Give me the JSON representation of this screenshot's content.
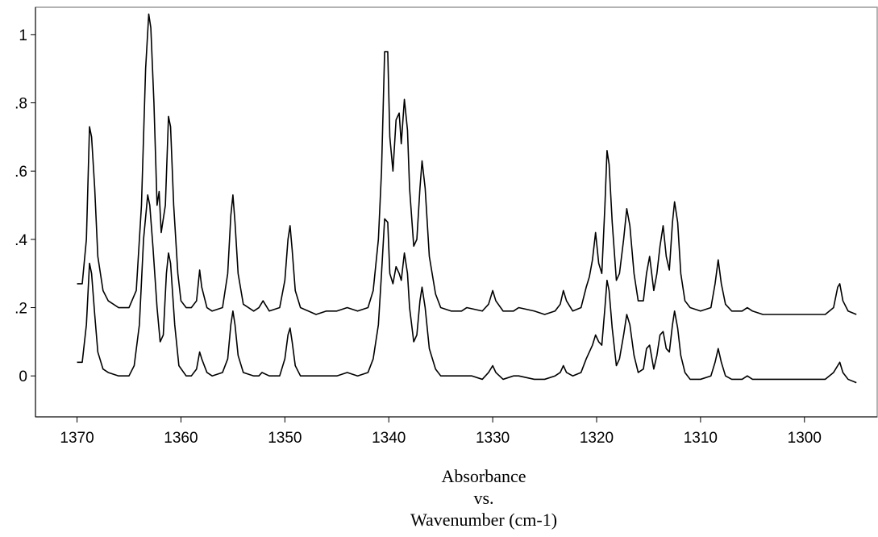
{
  "chart_data": {
    "type": "line",
    "title": "",
    "xlabel_lines": [
      "Absorbance",
      "vs.",
      "Wavenumber (cm-1)"
    ],
    "ylabel": "",
    "x_reversed": true,
    "xlim": [
      1374,
      1293
    ],
    "ylim": [
      -0.12,
      1.08
    ],
    "x_ticks": [
      1370,
      1360,
      1350,
      1340,
      1330,
      1320,
      1310,
      1300
    ],
    "x_tick_labels": [
      "1370",
      "1360",
      "1350",
      "1340",
      "1330",
      "1320",
      "1310",
      "1300"
    ],
    "y_ticks": [
      0,
      0.2,
      0.4,
      0.6,
      0.8,
      1.0
    ],
    "y_tick_labels": [
      "0",
      ".2",
      ".4",
      ".6",
      ".8",
      "1"
    ],
    "grid": false,
    "legend": "none",
    "series": [
      {
        "color": "#000000",
        "points": [
          [
            1370,
            0.27
          ],
          [
            1369.5,
            0.27
          ],
          [
            1369.1,
            0.4
          ],
          [
            1368.8,
            0.73
          ],
          [
            1368.6,
            0.7
          ],
          [
            1368.3,
            0.55
          ],
          [
            1368,
            0.35
          ],
          [
            1367.5,
            0.25
          ],
          [
            1367,
            0.22
          ],
          [
            1366,
            0.2
          ],
          [
            1365,
            0.2
          ],
          [
            1364.3,
            0.25
          ],
          [
            1363.8,
            0.5
          ],
          [
            1363.4,
            0.9
          ],
          [
            1363.1,
            1.06
          ],
          [
            1362.9,
            1.02
          ],
          [
            1362.6,
            0.8
          ],
          [
            1362.3,
            0.5
          ],
          [
            1362.1,
            0.54
          ],
          [
            1361.9,
            0.42
          ],
          [
            1361.5,
            0.5
          ],
          [
            1361.2,
            0.76
          ],
          [
            1361,
            0.73
          ],
          [
            1360.7,
            0.5
          ],
          [
            1360.3,
            0.3
          ],
          [
            1360,
            0.22
          ],
          [
            1359.5,
            0.2
          ],
          [
            1359,
            0.2
          ],
          [
            1358.5,
            0.22
          ],
          [
            1358.2,
            0.31
          ],
          [
            1358,
            0.26
          ],
          [
            1357.5,
            0.2
          ],
          [
            1357,
            0.19
          ],
          [
            1356,
            0.2
          ],
          [
            1355.5,
            0.3
          ],
          [
            1355.2,
            0.47
          ],
          [
            1355,
            0.53
          ],
          [
            1354.8,
            0.45
          ],
          [
            1354.5,
            0.3
          ],
          [
            1354,
            0.21
          ],
          [
            1353,
            0.19
          ],
          [
            1352.5,
            0.2
          ],
          [
            1352.1,
            0.22
          ],
          [
            1351.5,
            0.19
          ],
          [
            1350.5,
            0.2
          ],
          [
            1350,
            0.28
          ],
          [
            1349.7,
            0.4
          ],
          [
            1349.5,
            0.44
          ],
          [
            1349.3,
            0.37
          ],
          [
            1349,
            0.25
          ],
          [
            1348.5,
            0.2
          ],
          [
            1347,
            0.18
          ],
          [
            1346,
            0.19
          ],
          [
            1345,
            0.19
          ],
          [
            1344,
            0.2
          ],
          [
            1343,
            0.19
          ],
          [
            1342,
            0.2
          ],
          [
            1341.5,
            0.25
          ],
          [
            1341,
            0.4
          ],
          [
            1340.7,
            0.6
          ],
          [
            1340.4,
            0.95
          ],
          [
            1340.1,
            0.95
          ],
          [
            1339.9,
            0.7
          ],
          [
            1339.6,
            0.6
          ],
          [
            1339.3,
            0.75
          ],
          [
            1339,
            0.77
          ],
          [
            1338.8,
            0.68
          ],
          [
            1338.5,
            0.81
          ],
          [
            1338.2,
            0.72
          ],
          [
            1338,
            0.55
          ],
          [
            1337.6,
            0.38
          ],
          [
            1337.3,
            0.4
          ],
          [
            1337,
            0.55
          ],
          [
            1336.8,
            0.63
          ],
          [
            1336.5,
            0.55
          ],
          [
            1336.1,
            0.35
          ],
          [
            1335.5,
            0.24
          ],
          [
            1335,
            0.2
          ],
          [
            1334,
            0.19
          ],
          [
            1333,
            0.19
          ],
          [
            1332.5,
            0.2
          ],
          [
            1331,
            0.19
          ],
          [
            1330.4,
            0.21
          ],
          [
            1330,
            0.25
          ],
          [
            1329.7,
            0.22
          ],
          [
            1329,
            0.19
          ],
          [
            1328,
            0.19
          ],
          [
            1327.5,
            0.2
          ],
          [
            1326,
            0.19
          ],
          [
            1325,
            0.18
          ],
          [
            1324,
            0.19
          ],
          [
            1323.5,
            0.21
          ],
          [
            1323.2,
            0.25
          ],
          [
            1322.9,
            0.22
          ],
          [
            1322.3,
            0.19
          ],
          [
            1321.5,
            0.2
          ],
          [
            1321,
            0.26
          ],
          [
            1320.7,
            0.29
          ],
          [
            1320.4,
            0.34
          ],
          [
            1320.1,
            0.42
          ],
          [
            1319.8,
            0.33
          ],
          [
            1319.5,
            0.3
          ],
          [
            1319.2,
            0.5
          ],
          [
            1319,
            0.66
          ],
          [
            1318.8,
            0.62
          ],
          [
            1318.5,
            0.45
          ],
          [
            1318.1,
            0.28
          ],
          [
            1317.8,
            0.3
          ],
          [
            1317.4,
            0.4
          ],
          [
            1317.1,
            0.49
          ],
          [
            1316.8,
            0.44
          ],
          [
            1316.4,
            0.3
          ],
          [
            1316,
            0.22
          ],
          [
            1315.5,
            0.22
          ],
          [
            1315.2,
            0.3
          ],
          [
            1314.9,
            0.35
          ],
          [
            1314.5,
            0.25
          ],
          [
            1314.2,
            0.3
          ],
          [
            1313.9,
            0.38
          ],
          [
            1313.6,
            0.44
          ],
          [
            1313.3,
            0.35
          ],
          [
            1313,
            0.31
          ],
          [
            1312.7,
            0.45
          ],
          [
            1312.5,
            0.51
          ],
          [
            1312.2,
            0.45
          ],
          [
            1311.9,
            0.3
          ],
          [
            1311.5,
            0.22
          ],
          [
            1311,
            0.2
          ],
          [
            1310,
            0.19
          ],
          [
            1309,
            0.2
          ],
          [
            1308.6,
            0.27
          ],
          [
            1308.3,
            0.34
          ],
          [
            1308,
            0.27
          ],
          [
            1307.6,
            0.21
          ],
          [
            1307,
            0.19
          ],
          [
            1306,
            0.19
          ],
          [
            1305.5,
            0.2
          ],
          [
            1305,
            0.19
          ],
          [
            1304,
            0.18
          ],
          [
            1303,
            0.18
          ],
          [
            1302,
            0.18
          ],
          [
            1301,
            0.18
          ],
          [
            1300,
            0.18
          ],
          [
            1298,
            0.18
          ],
          [
            1297.2,
            0.2
          ],
          [
            1296.8,
            0.26
          ],
          [
            1296.6,
            0.27
          ],
          [
            1296.3,
            0.22
          ],
          [
            1295.8,
            0.19
          ],
          [
            1295,
            0.18
          ]
        ]
      },
      {
        "color": "#000000",
        "points": [
          [
            1370,
            0.04
          ],
          [
            1369.5,
            0.04
          ],
          [
            1369.1,
            0.15
          ],
          [
            1368.8,
            0.33
          ],
          [
            1368.6,
            0.3
          ],
          [
            1368.3,
            0.18
          ],
          [
            1368,
            0.07
          ],
          [
            1367.5,
            0.02
          ],
          [
            1367,
            0.01
          ],
          [
            1366,
            0.0
          ],
          [
            1365,
            0.0
          ],
          [
            1364.5,
            0.03
          ],
          [
            1364,
            0.15
          ],
          [
            1363.6,
            0.4
          ],
          [
            1363.2,
            0.53
          ],
          [
            1363,
            0.5
          ],
          [
            1362.7,
            0.38
          ],
          [
            1362.3,
            0.2
          ],
          [
            1362,
            0.1
          ],
          [
            1361.7,
            0.12
          ],
          [
            1361.4,
            0.3
          ],
          [
            1361.2,
            0.36
          ],
          [
            1361,
            0.33
          ],
          [
            1360.6,
            0.15
          ],
          [
            1360.2,
            0.03
          ],
          [
            1359.5,
            0.0
          ],
          [
            1359,
            0.0
          ],
          [
            1358.5,
            0.02
          ],
          [
            1358.2,
            0.07
          ],
          [
            1358,
            0.05
          ],
          [
            1357.5,
            0.01
          ],
          [
            1357,
            0.0
          ],
          [
            1356,
            0.01
          ],
          [
            1355.5,
            0.05
          ],
          [
            1355.2,
            0.15
          ],
          [
            1355,
            0.19
          ],
          [
            1354.8,
            0.15
          ],
          [
            1354.5,
            0.06
          ],
          [
            1354,
            0.01
          ],
          [
            1353,
            0.0
          ],
          [
            1352.5,
            0.0
          ],
          [
            1352.2,
            0.01
          ],
          [
            1351.5,
            0.0
          ],
          [
            1350.5,
            0.0
          ],
          [
            1350,
            0.05
          ],
          [
            1349.7,
            0.12
          ],
          [
            1349.5,
            0.14
          ],
          [
            1349.3,
            0.1
          ],
          [
            1349,
            0.03
          ],
          [
            1348.5,
            0.0
          ],
          [
            1347,
            0.0
          ],
          [
            1345,
            0.0
          ],
          [
            1344,
            0.01
          ],
          [
            1343,
            0.0
          ],
          [
            1342,
            0.01
          ],
          [
            1341.5,
            0.05
          ],
          [
            1341,
            0.15
          ],
          [
            1340.7,
            0.3
          ],
          [
            1340.4,
            0.46
          ],
          [
            1340.1,
            0.45
          ],
          [
            1339.9,
            0.3
          ],
          [
            1339.6,
            0.27
          ],
          [
            1339.3,
            0.32
          ],
          [
            1339,
            0.3
          ],
          [
            1338.8,
            0.28
          ],
          [
            1338.5,
            0.36
          ],
          [
            1338.2,
            0.3
          ],
          [
            1338,
            0.2
          ],
          [
            1337.6,
            0.1
          ],
          [
            1337.3,
            0.12
          ],
          [
            1337,
            0.22
          ],
          [
            1336.8,
            0.26
          ],
          [
            1336.5,
            0.2
          ],
          [
            1336.1,
            0.08
          ],
          [
            1335.5,
            0.02
          ],
          [
            1335,
            0.0
          ],
          [
            1333,
            0.0
          ],
          [
            1332,
            0.0
          ],
          [
            1331,
            -0.01
          ],
          [
            1330.4,
            0.01
          ],
          [
            1330,
            0.03
          ],
          [
            1329.7,
            0.01
          ],
          [
            1329,
            -0.01
          ],
          [
            1328,
            0.0
          ],
          [
            1327.5,
            0.0
          ],
          [
            1326,
            -0.01
          ],
          [
            1325,
            -0.01
          ],
          [
            1324,
            0.0
          ],
          [
            1323.5,
            0.01
          ],
          [
            1323.2,
            0.03
          ],
          [
            1322.9,
            0.01
          ],
          [
            1322.3,
            0.0
          ],
          [
            1321.5,
            0.01
          ],
          [
            1321,
            0.05
          ],
          [
            1320.7,
            0.07
          ],
          [
            1320.4,
            0.09
          ],
          [
            1320.1,
            0.12
          ],
          [
            1319.8,
            0.1
          ],
          [
            1319.5,
            0.09
          ],
          [
            1319.2,
            0.2
          ],
          [
            1319,
            0.28
          ],
          [
            1318.8,
            0.25
          ],
          [
            1318.5,
            0.14
          ],
          [
            1318.1,
            0.03
          ],
          [
            1317.8,
            0.05
          ],
          [
            1317.4,
            0.12
          ],
          [
            1317.1,
            0.18
          ],
          [
            1316.8,
            0.15
          ],
          [
            1316.4,
            0.06
          ],
          [
            1316,
            0.01
          ],
          [
            1315.5,
            0.02
          ],
          [
            1315.2,
            0.08
          ],
          [
            1314.9,
            0.09
          ],
          [
            1314.5,
            0.02
          ],
          [
            1314.2,
            0.06
          ],
          [
            1313.9,
            0.12
          ],
          [
            1313.6,
            0.13
          ],
          [
            1313.3,
            0.08
          ],
          [
            1313,
            0.07
          ],
          [
            1312.7,
            0.15
          ],
          [
            1312.5,
            0.19
          ],
          [
            1312.2,
            0.14
          ],
          [
            1311.9,
            0.06
          ],
          [
            1311.5,
            0.01
          ],
          [
            1311,
            -0.01
          ],
          [
            1310,
            -0.01
          ],
          [
            1309,
            0.0
          ],
          [
            1308.6,
            0.04
          ],
          [
            1308.3,
            0.08
          ],
          [
            1308,
            0.04
          ],
          [
            1307.6,
            0.0
          ],
          [
            1307,
            -0.01
          ],
          [
            1306,
            -0.01
          ],
          [
            1305.5,
            0.0
          ],
          [
            1305,
            -0.01
          ],
          [
            1304,
            -0.01
          ],
          [
            1302,
            -0.01
          ],
          [
            1300,
            -0.01
          ],
          [
            1298,
            -0.01
          ],
          [
            1297.2,
            0.01
          ],
          [
            1296.8,
            0.03
          ],
          [
            1296.6,
            0.04
          ],
          [
            1296.3,
            0.01
          ],
          [
            1295.8,
            -0.01
          ],
          [
            1295,
            -0.02
          ]
        ]
      }
    ]
  }
}
